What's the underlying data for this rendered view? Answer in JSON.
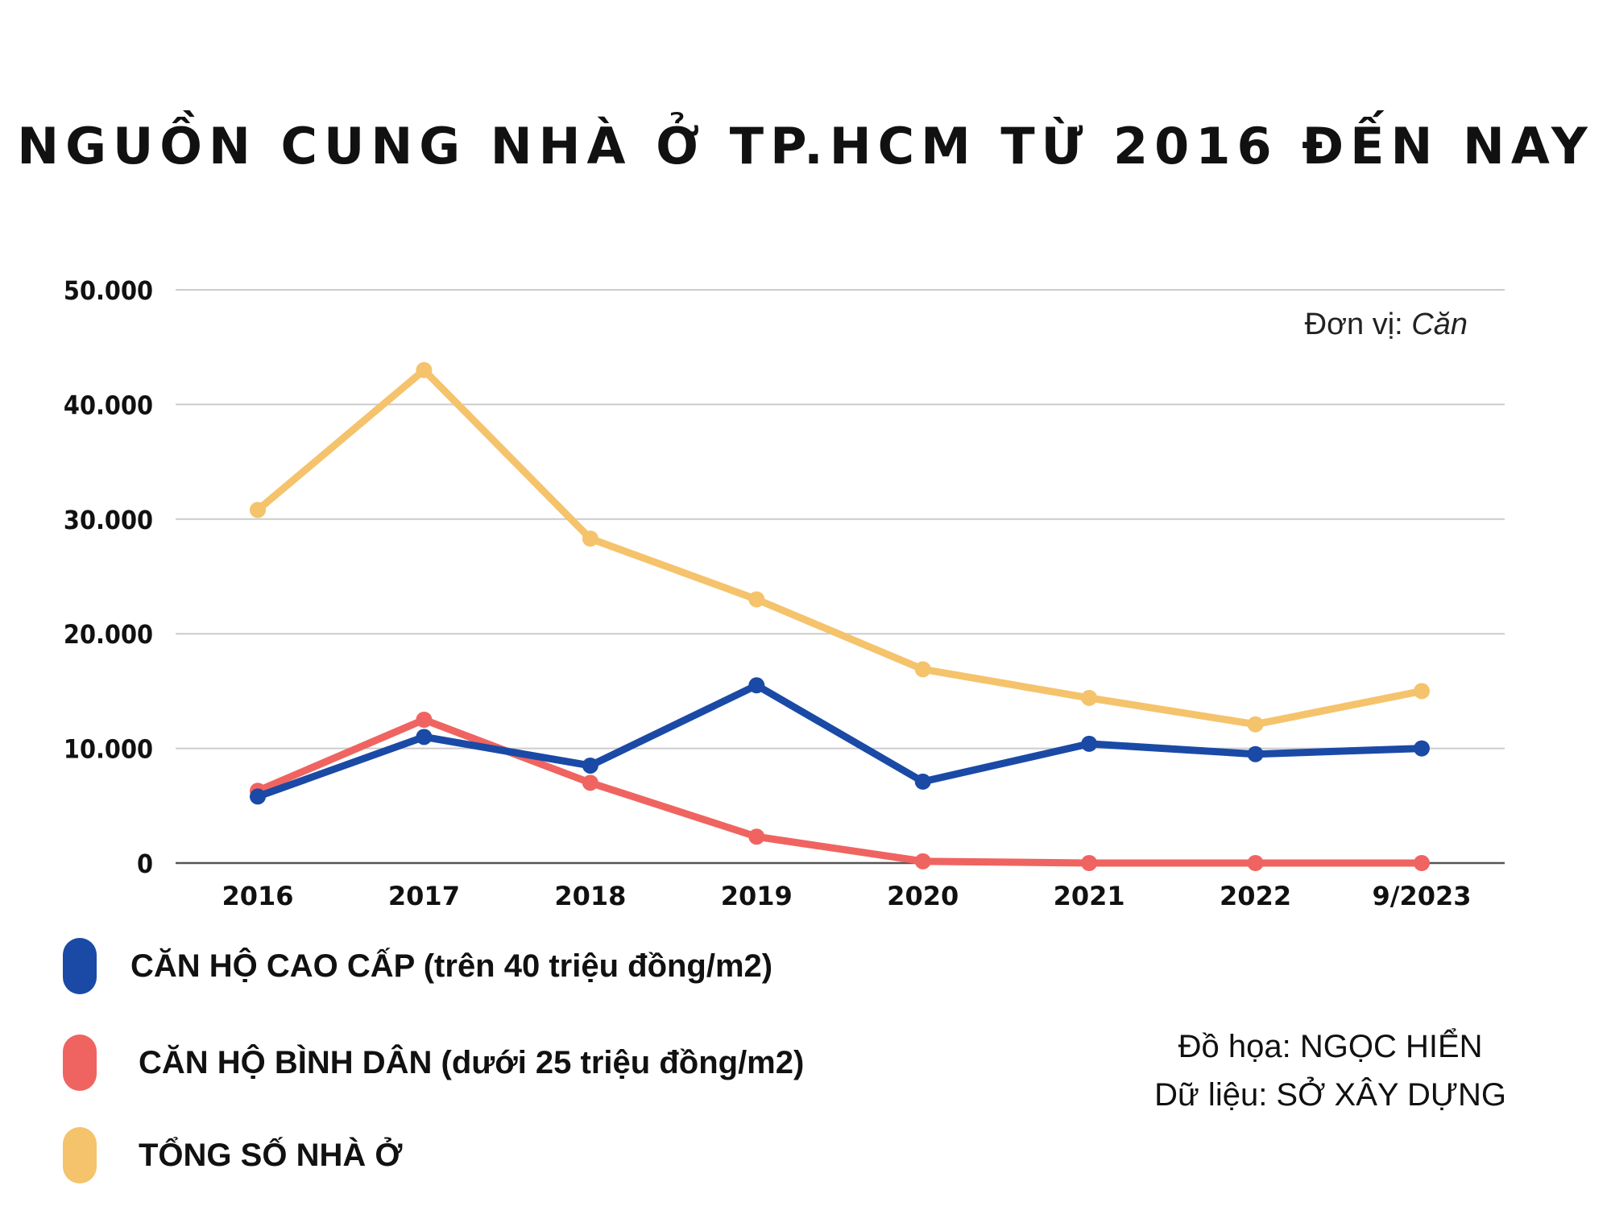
{
  "title": "NGUỒN CUNG NHÀ Ở TP.HCM TỪ 2016 ĐẾN NAY",
  "unit": {
    "prefix": "Đơn vị: ",
    "value": "Căn"
  },
  "credits": {
    "graphic": "Đồ họa: NGỌC HIỂN",
    "data": "Dữ liệu: SỞ XÂY DỰNG"
  },
  "colors": {
    "blue": "#1a4aa6",
    "red": "#ef6461",
    "yellow": "#f4c36b",
    "grid": "#cccccc",
    "axis": "#555555"
  },
  "chart_data": {
    "type": "line",
    "title": "NGUỒN CUNG NHÀ Ở TP.HCM TỪ 2016 ĐẾN NAY",
    "xlabel": "",
    "ylabel": "",
    "categories": [
      "2016",
      "2017",
      "2018",
      "2019",
      "2020",
      "2021",
      "2022",
      "9/2023"
    ],
    "ylim": [
      0,
      50000
    ],
    "yticks": [
      0,
      10000,
      20000,
      30000,
      40000,
      50000
    ],
    "ytick_labels": [
      "0",
      "10.000",
      "20.000",
      "30.000",
      "40.000",
      "50.000"
    ],
    "grid": true,
    "legend_position": "bottom-left",
    "series": [
      {
        "name": "TỔNG SỐ NHÀ Ở",
        "color": "#f4c36b",
        "values": [
          30800,
          43000,
          28300,
          23000,
          16900,
          14400,
          12100,
          15000
        ]
      },
      {
        "name": "CĂN HỘ BÌNH DÂN (dưới 25 triệu đồng/m2)",
        "color": "#ef6461",
        "values": [
          6300,
          12500,
          7000,
          2300,
          150,
          0,
          0,
          0
        ]
      },
      {
        "name": "CĂN HỘ CAO CẤP (trên 40 triệu đồng/m2)",
        "color": "#1a4aa6",
        "values": [
          5800,
          11000,
          8500,
          15500,
          7100,
          10400,
          9500,
          10000
        ]
      }
    ]
  },
  "legend": [
    {
      "label": "CĂN HỘ CAO CẤP (trên 40 triệu đồng/m2)",
      "color": "#1a4aa6"
    },
    {
      "label": "CĂN HỘ BÌNH DÂN (dưới 25 triệu đồng/m2)",
      "color": "#ef6461"
    },
    {
      "label": "TỔNG SỐ NHÀ Ở",
      "color": "#f4c36b"
    }
  ]
}
